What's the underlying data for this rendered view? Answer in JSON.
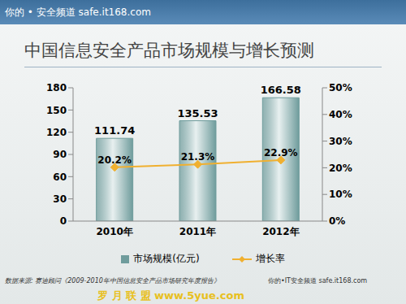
{
  "chart_data": {
    "type": "bar",
    "title": "中国信息安全产品市场规模与增长预测",
    "categories": [
      "2010年",
      "2011年",
      "2012年"
    ],
    "series": [
      {
        "name": "市场规模(亿元)",
        "type": "bar",
        "color": "#6f9c9c",
        "values": [
          111.74,
          135.53,
          166.58
        ]
      },
      {
        "name": "增长率",
        "type": "line",
        "color": "#f0b030",
        "marker": "diamond",
        "axis": "y2",
        "values": [
          20.2,
          21.3,
          22.9
        ],
        "value_labels": [
          "20.2%",
          "21.3%",
          "22.9%"
        ]
      }
    ],
    "ylim": [
      0,
      180
    ],
    "yticks": [
      0,
      30,
      60,
      90,
      120,
      150,
      180
    ],
    "y2lim": [
      0,
      50
    ],
    "y2ticks": [
      {
        "value": 0,
        "label": "0%"
      },
      {
        "value": 10,
        "label": "10%"
      },
      {
        "value": 20,
        "label": "20%"
      },
      {
        "value": 30,
        "label": "30%"
      },
      {
        "value": 40,
        "label": "40%"
      },
      {
        "value": 50,
        "label": "50%"
      }
    ],
    "grid": false,
    "legend": "bottom",
    "data_labels": true,
    "source": "数据来源: 赛迪顾问《2009-2010年中国信息安全产品市场研究年度报告》",
    "annotations": [
      "你的 • 安全频道 safe.it168.com",
      "罗 月 联 盟 www.5yue.com",
      "你的•IT安全频道 safe.it168.com"
    ]
  }
}
